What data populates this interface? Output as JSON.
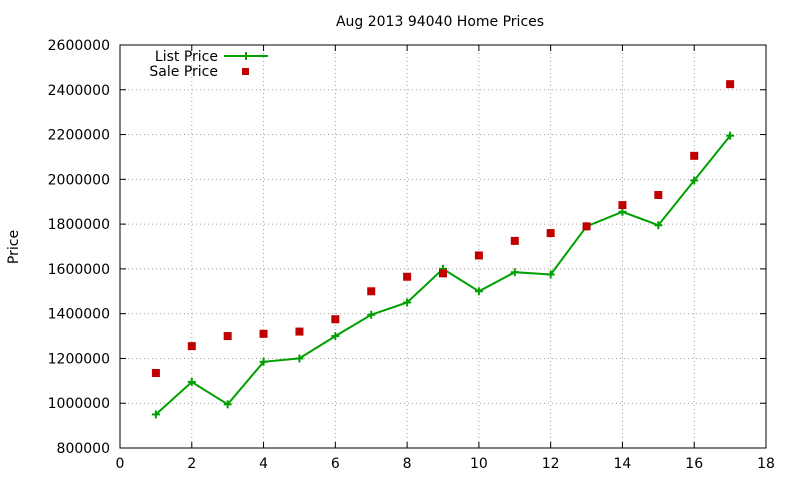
{
  "chart_data": {
    "type": "line",
    "title": "Aug 2013 94040 Home Prices",
    "xlabel": "",
    "ylabel": "Price",
    "xlim": [
      0,
      18
    ],
    "ylim": [
      800000,
      2600000
    ],
    "x_ticks": [
      0,
      2,
      4,
      6,
      8,
      10,
      12,
      14,
      16,
      18
    ],
    "y_ticks": [
      800000,
      1000000,
      1200000,
      1400000,
      1600000,
      1800000,
      2000000,
      2200000,
      2400000,
      2600000
    ],
    "grid": true,
    "legend_position": "top-left",
    "series": [
      {
        "name": "List Price",
        "style": "line-with-plus-markers",
        "color": "#00a000",
        "x": [
          1,
          2,
          3,
          4,
          5,
          6,
          7,
          8,
          9,
          10,
          11,
          12,
          13,
          14,
          15,
          16,
          17
        ],
        "y": [
          950000,
          1095000,
          995000,
          1185000,
          1200000,
          1300000,
          1395000,
          1450000,
          1600000,
          1500000,
          1585000,
          1575000,
          1790000,
          1855000,
          1795000,
          1995000,
          2195000
        ]
      },
      {
        "name": "Sale Price",
        "style": "square-markers",
        "color": "#c00000",
        "x": [
          1,
          2,
          3,
          4,
          5,
          6,
          7,
          8,
          9,
          10,
          11,
          12,
          13,
          14,
          15,
          16,
          17
        ],
        "y": [
          1135000,
          1255000,
          1300000,
          1310000,
          1320000,
          1375000,
          1500000,
          1565000,
          1580000,
          1660000,
          1725000,
          1760000,
          1790000,
          1885000,
          1930000,
          2105000,
          2425000
        ]
      }
    ]
  }
}
